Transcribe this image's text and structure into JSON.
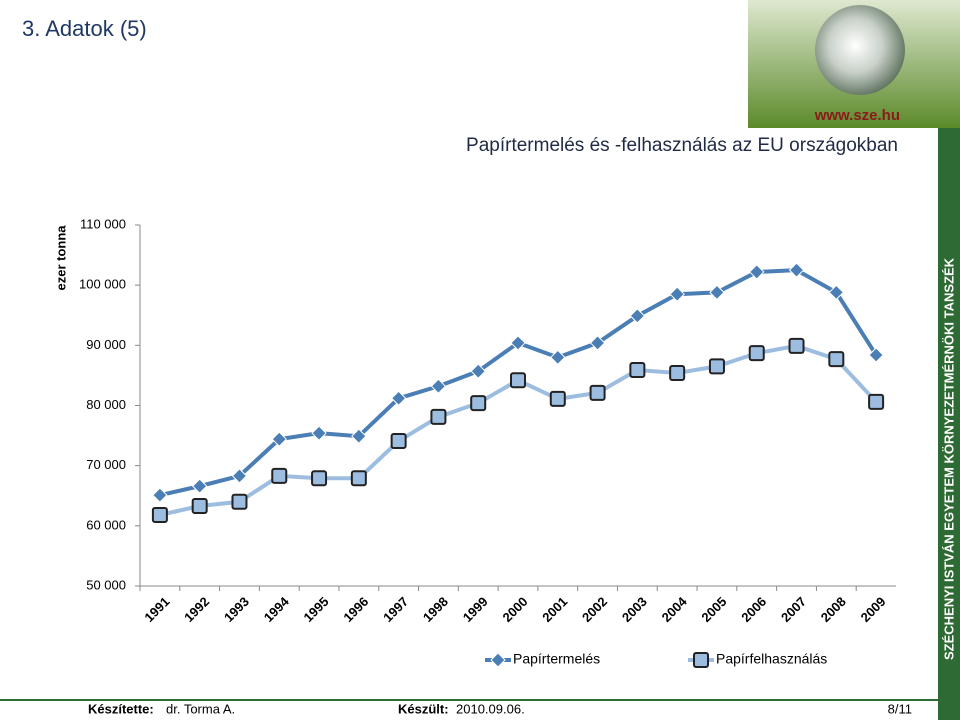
{
  "slide": {
    "heading": "3. Adatok (5)",
    "url": "www.sze.hu",
    "side_text": "SZÉCHENYI ISTVÁN EGYETEM KÖRNYEZETMÉRNÖKI TANSZÉK",
    "footer": {
      "author_label": "Készítette:",
      "author": "dr. Torma A.",
      "date_label": "Készült:",
      "date": "2010.09.06.",
      "page": "8/11"
    }
  },
  "chart_data": {
    "type": "line",
    "title": "Papírtermelés és -felhasználás az EU országokban",
    "y_label": "ezer tonna",
    "categories": [
      "1991",
      "1992",
      "1993",
      "1994",
      "1995",
      "1996",
      "1997",
      "1998",
      "1999",
      "2000",
      "2001",
      "2002",
      "2003",
      "2004",
      "2005",
      "2006",
      "2007",
      "2008",
      "2009"
    ],
    "series": [
      {
        "name": "Papírtermelés",
        "color": "#4a7eb5",
        "marker": "diamond",
        "values": [
          65100,
          66600,
          68300,
          74400,
          75400,
          74900,
          81200,
          83200,
          85700,
          90400,
          88000,
          90400,
          94900,
          98500,
          98800,
          102200,
          102500,
          98800,
          88400
        ]
      },
      {
        "name": "Papírfelhasználás",
        "color": "#9dbde0",
        "marker": "square",
        "values": [
          61800,
          63300,
          64000,
          68300,
          67900,
          67900,
          74100,
          78100,
          80400,
          84200,
          81100,
          82100,
          85900,
          85400,
          86500,
          88700,
          89900,
          87700,
          80600
        ]
      }
    ],
    "ylim": [
      50000,
      110000
    ],
    "yticks": [
      {
        "value": 50000,
        "label": "50 000"
      },
      {
        "value": 60000,
        "label": "60 000"
      },
      {
        "value": 70000,
        "label": "70 000"
      },
      {
        "value": 80000,
        "label": "80 000"
      },
      {
        "value": 90000,
        "label": "90 000"
      },
      {
        "value": 100000,
        "label": "100 000"
      },
      {
        "value": 110000,
        "label": "110 000"
      }
    ],
    "grid": false,
    "legend": "bottom"
  }
}
